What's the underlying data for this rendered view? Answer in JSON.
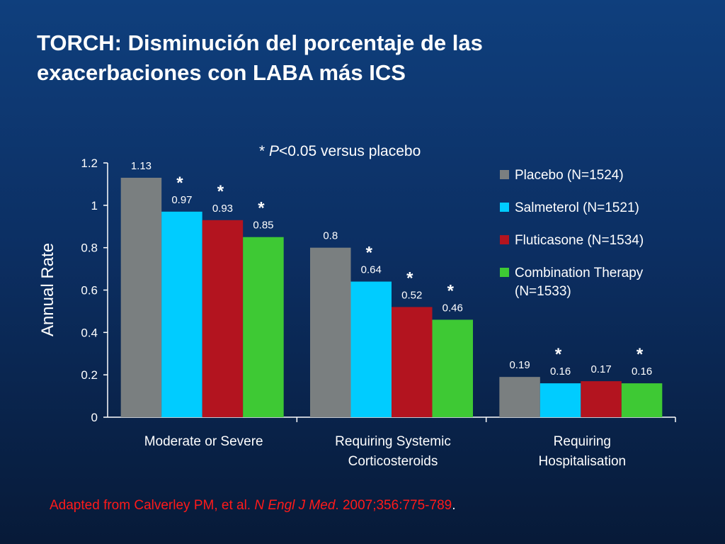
{
  "slide": {
    "title_line1": "TORCH: Disminución del porcentaje de las",
    "title_line2": "exacerbaciones con LABA más ICS",
    "footnote": {
      "prefix": "Adapted from Calverley PM, et al. ",
      "journal": "N Engl J Med",
      "suffix": ". 2007;356:775-789",
      "end": "."
    }
  },
  "chart_data": {
    "type": "bar",
    "note_prefix": "* ",
    "note_p": "P",
    "note_rest": "<0.05 versus placebo",
    "ylabel": "Annual Rate",
    "xlabel": "",
    "ylim": [
      0,
      1.2
    ],
    "yticks": [
      "0",
      "0.2",
      "0.4",
      "0.6",
      "0.8",
      "1",
      "1.2"
    ],
    "categories": [
      [
        "Moderate or Severe"
      ],
      [
        "Requiring Systemic",
        "Corticosteroids"
      ],
      [
        "Requiring",
        "Hospitalisation"
      ]
    ],
    "series": [
      {
        "name": "Placebo (N=1524)",
        "color": "#7a7f80",
        "values": [
          1.13,
          0.8,
          0.19
        ],
        "labels": [
          "1.13",
          "0.8",
          "0.19"
        ],
        "significant": [
          false,
          false,
          false
        ]
      },
      {
        "name": "Salmeterol (N=1521)",
        "color": "#00ccff",
        "values": [
          0.97,
          0.64,
          0.16
        ],
        "labels": [
          "0.97",
          "0.64",
          "0.16"
        ],
        "significant": [
          true,
          true,
          true
        ]
      },
      {
        "name": "Fluticasone (N=1534)",
        "color": "#b3141f",
        "values": [
          0.93,
          0.52,
          0.17
        ],
        "labels": [
          "0.93",
          "0.52",
          "0.17"
        ],
        "significant": [
          true,
          true,
          false
        ]
      },
      {
        "name": "Combination Therapy (N=1533)",
        "name_lines": [
          "Combination Therapy",
          "(N=1533)"
        ],
        "color": "#3ec934",
        "values": [
          0.85,
          0.46,
          0.16
        ],
        "labels": [
          "0.85",
          "0.46",
          "0.16"
        ],
        "significant": [
          true,
          true,
          true
        ]
      }
    ],
    "significance_marker": "*",
    "legend_position": "right",
    "grid": false
  }
}
